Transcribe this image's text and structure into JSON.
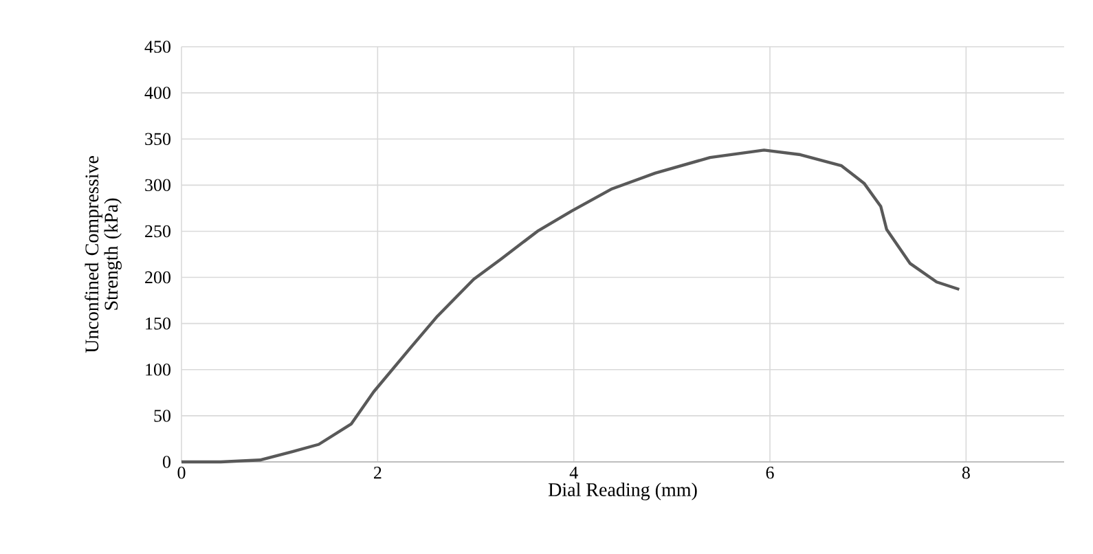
{
  "chart_data": {
    "type": "line",
    "xlabel": "Dial Reading (mm)",
    "ylabel": "Unconfined Compressive Strength (kPa)",
    "series": [
      {
        "color": "#595959",
        "x": [
          0,
          0.4,
          0.8,
          1.13,
          1.4,
          1.73,
          1.96,
          2.33,
          2.61,
          2.98,
          3.26,
          3.63,
          3.98,
          4.39,
          4.83,
          5.39,
          5.94,
          6.31,
          6.73,
          6.96,
          7.13,
          7.19,
          7.43,
          7.7,
          7.93
        ],
        "values": [
          0,
          0,
          2,
          11,
          19,
          41,
          76,
          123,
          158,
          198,
          220,
          250,
          272,
          296,
          313,
          330,
          338,
          333,
          321,
          302,
          277,
          252,
          215,
          195,
          187
        ]
      }
    ],
    "xlim": [
      0,
      9
    ],
    "xticks": [
      0,
      2,
      4,
      6,
      8
    ],
    "ylim": [
      0,
      450
    ],
    "yticks": [
      0,
      50,
      100,
      150,
      200,
      250,
      300,
      350,
      400,
      450
    ],
    "grid": true,
    "marker": "none",
    "line_style": "solid"
  }
}
